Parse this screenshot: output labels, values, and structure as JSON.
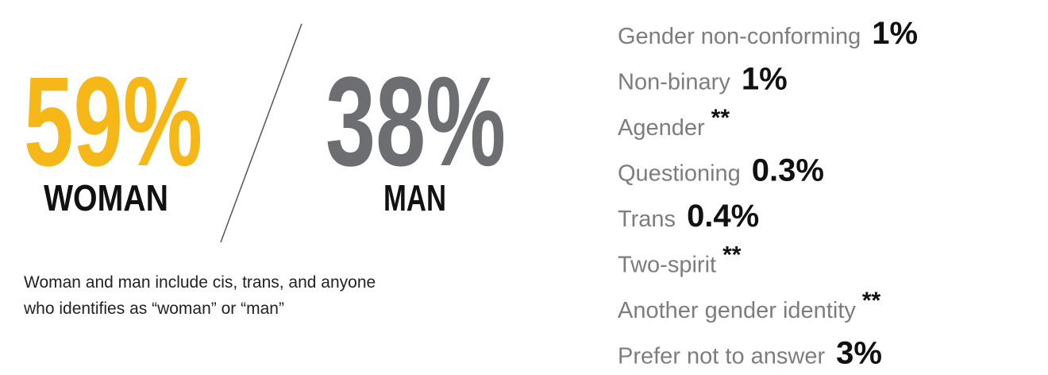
{
  "left": {
    "woman": {
      "value": "59%",
      "label": "WOMAN"
    },
    "man": {
      "value": "38%",
      "label": "MAN"
    },
    "note": [
      "Woman and man include cis, trans, and anyone",
      "who identifies as “woman” or “man”"
    ]
  },
  "right": {
    "items": [
      {
        "label": "Gender non-conforming",
        "value": "1%"
      },
      {
        "label": "Non-binary",
        "value": "1%"
      },
      {
        "label": "Agender",
        "value": "**"
      },
      {
        "label": "Questioning",
        "value": "0.3%"
      },
      {
        "label": "Trans",
        "value": "0.4%"
      },
      {
        "label": "Two-spirit",
        "value": "**"
      },
      {
        "label": "Another gender identity",
        "value": "**"
      },
      {
        "label": "Prefer not to answer",
        "value": "3%"
      }
    ]
  }
}
